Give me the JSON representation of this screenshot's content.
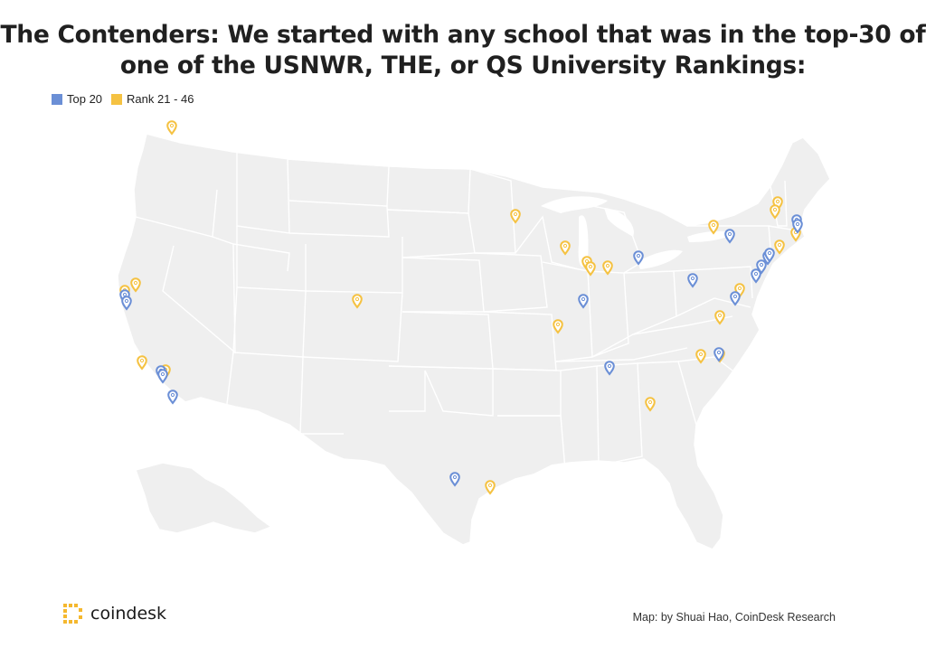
{
  "title_lines": [
    "The Contenders: We started with any school that was in the top-30 of",
    "one of the USNWR, THE, or QS University Rankings:"
  ],
  "legend": [
    {
      "label": "Top 20",
      "color": "#6b8fd6"
    },
    {
      "label": "Rank 21 - 46",
      "color": "#f5c242"
    }
  ],
  "map_style": {
    "land": "#efefef",
    "border": "#ffffff",
    "pin_blue": "#6b8fd6",
    "pin_yellow": "#f5c242"
  },
  "footer": {
    "logo_text": "coindesk",
    "credit": "Map: by Shuai Hao, CoinDesk Research"
  }
}
